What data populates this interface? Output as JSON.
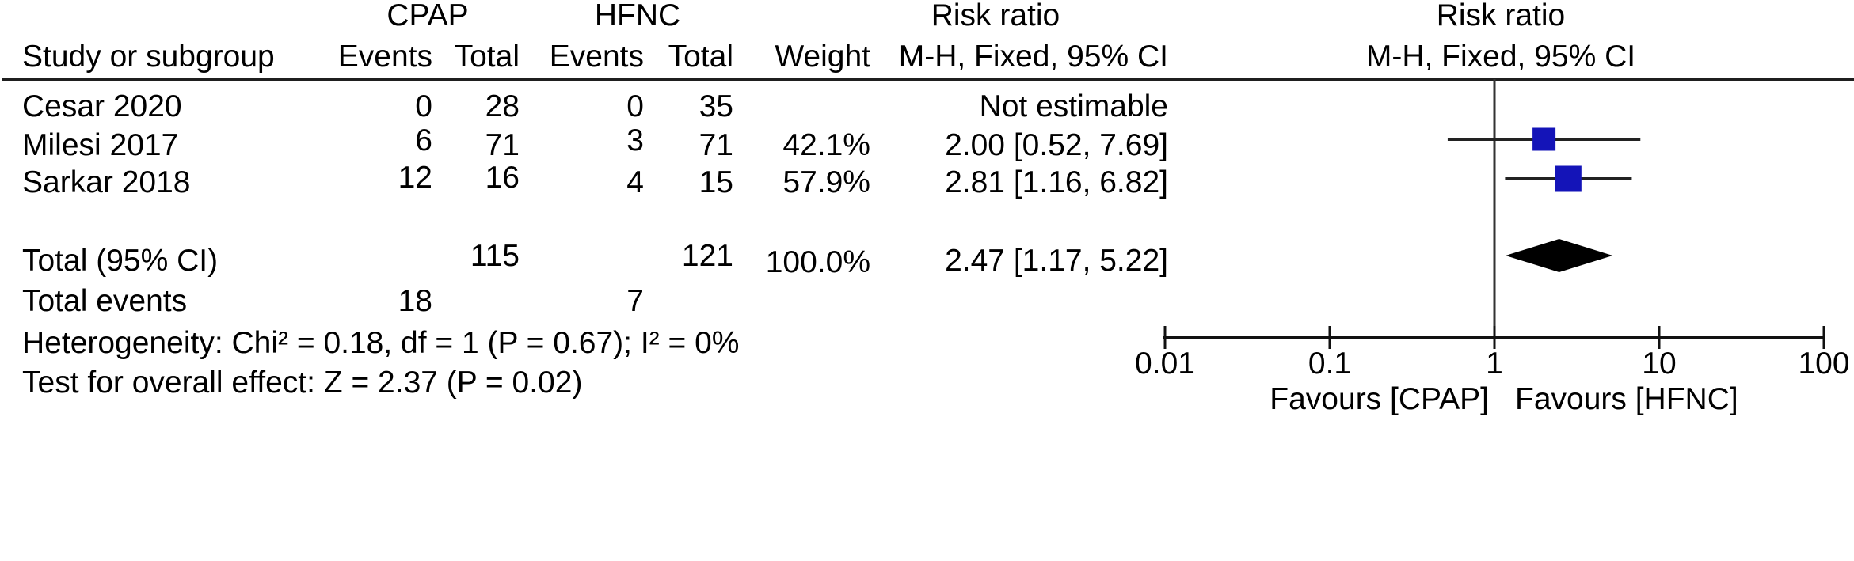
{
  "table": {
    "group1_header": "CPAP",
    "group2_header": "HFNC",
    "risk_ratio_header_left": "Risk ratio",
    "risk_ratio_header_right": "Risk ratio",
    "method_header_left": "M-H, Fixed, 95% CI",
    "method_header_right": "M-H, Fixed, 95% CI",
    "col_headers": {
      "study": "Study or subgroup",
      "events": "Events",
      "total": "Total",
      "weight": "Weight"
    },
    "rows": [
      {
        "study": "Cesar 2020",
        "cpap_events": "0",
        "cpap_total": "28",
        "hfnc_events": "0",
        "hfnc_total": "35",
        "weight": "",
        "ci_text": "Not estimable"
      },
      {
        "study": "Milesi 2017",
        "cpap_events": "6",
        "cpap_total": "71",
        "hfnc_events": "3",
        "hfnc_total": "71",
        "weight": "42.1%",
        "ci_text": "2.00 [0.52, 7.69]"
      },
      {
        "study": "Sarkar 2018",
        "cpap_events": "12",
        "cpap_total": "16",
        "hfnc_events": "4",
        "hfnc_total": "15",
        "weight": "57.9%",
        "ci_text": "2.81 [1.16, 6.82]"
      }
    ],
    "total_row": {
      "label": "Total (95% CI)",
      "cpap_total": "115",
      "hfnc_total": "121",
      "weight": "100.0%",
      "ci_text": "2.47 [1.17, 5.22]"
    },
    "total_events_row": {
      "label": "Total events",
      "cpap_events": "18",
      "hfnc_events": "7"
    },
    "heterogeneity_text": "Heterogeneity: Chi² = 0.18, df = 1 (P = 0.67); I² = 0%",
    "overall_effect_text": "Test for overall effect: Z = 2.37 (P = 0.02)"
  },
  "chart_data": {
    "type": "forest",
    "x_scale": "log10",
    "xlim": [
      0.01,
      100
    ],
    "x_ticks": [
      0.01,
      0.1,
      1,
      10,
      100
    ],
    "null_line": 1,
    "effect_measure": "Risk ratio (M-H, Fixed, 95% CI)",
    "studies": [
      {
        "label": "Cesar 2020",
        "estimable": false,
        "rr": null,
        "ci_low": null,
        "ci_high": null,
        "weight_pct": null
      },
      {
        "label": "Milesi 2017",
        "estimable": true,
        "rr": 2.0,
        "ci_low": 0.52,
        "ci_high": 7.69,
        "weight_pct": 42.1
      },
      {
        "label": "Sarkar 2018",
        "estimable": true,
        "rr": 2.81,
        "ci_low": 1.16,
        "ci_high": 6.82,
        "weight_pct": 57.9
      }
    ],
    "total": {
      "label": "Total (95% CI)",
      "rr": 2.47,
      "ci_low": 1.17,
      "ci_high": 5.22,
      "weight_pct": 100.0
    },
    "heterogeneity": {
      "chi2": 0.18,
      "df": 1,
      "p": 0.67,
      "i2_pct": 0
    },
    "overall_effect": {
      "z": 2.37,
      "p": 0.02
    },
    "axis_labels": {
      "left": "Favours [CPAP]",
      "right": "Favours [HFNC]"
    },
    "marker_color": "#1414B8",
    "diamond_color": "#000000",
    "line_color": "#333333",
    "legend_position": "none",
    "grid": false
  }
}
